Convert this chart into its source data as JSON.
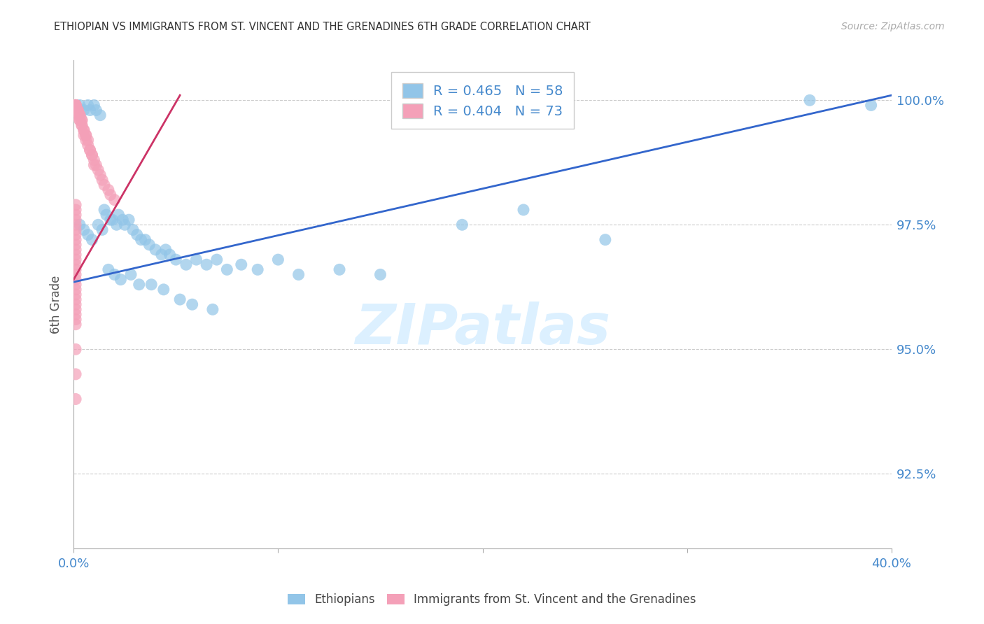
{
  "title": "ETHIOPIAN VS IMMIGRANTS FROM ST. VINCENT AND THE GRENADINES 6TH GRADE CORRELATION CHART",
  "source": "Source: ZipAtlas.com",
  "ylabel": "6th Grade",
  "ytick_labels": [
    "100.0%",
    "97.5%",
    "95.0%",
    "92.5%"
  ],
  "ytick_values": [
    1.0,
    0.975,
    0.95,
    0.925
  ],
  "xlim": [
    0.0,
    0.4
  ],
  "ylim": [
    0.91,
    1.008
  ],
  "legend_blue_r": "R = 0.465",
  "legend_blue_n": "N = 58",
  "legend_pink_r": "R = 0.404",
  "legend_pink_n": "N = 73",
  "blue_color": "#92C5E8",
  "pink_color": "#F4A0B8",
  "blue_line_color": "#3366CC",
  "pink_line_color": "#CC3366",
  "title_color": "#333333",
  "axis_label_color": "#4488CC",
  "watermark_color": "#DCF0FF",
  "blue_line_x": [
    0.0,
    0.4
  ],
  "blue_line_y": [
    0.9635,
    1.001
  ],
  "pink_line_x": [
    0.0,
    0.052
  ],
  "pink_line_y": [
    0.964,
    1.001
  ],
  "blue_scatter_x": [
    0.003,
    0.005,
    0.007,
    0.008,
    0.01,
    0.011,
    0.013,
    0.015,
    0.016,
    0.018,
    0.019,
    0.021,
    0.022,
    0.024,
    0.025,
    0.027,
    0.029,
    0.031,
    0.033,
    0.035,
    0.037,
    0.04,
    0.043,
    0.045,
    0.047,
    0.05,
    0.055,
    0.06,
    0.065,
    0.07,
    0.075,
    0.082,
    0.09,
    0.1,
    0.11,
    0.13,
    0.15,
    0.19,
    0.22,
    0.26,
    0.003,
    0.005,
    0.007,
    0.009,
    0.012,
    0.014,
    0.017,
    0.02,
    0.023,
    0.028,
    0.032,
    0.038,
    0.044,
    0.052,
    0.058,
    0.068,
    0.36,
    0.39
  ],
  "blue_scatter_y": [
    0.999,
    0.998,
    0.999,
    0.998,
    0.999,
    0.998,
    0.997,
    0.978,
    0.977,
    0.976,
    0.976,
    0.975,
    0.977,
    0.976,
    0.975,
    0.976,
    0.974,
    0.973,
    0.972,
    0.972,
    0.971,
    0.97,
    0.969,
    0.97,
    0.969,
    0.968,
    0.967,
    0.968,
    0.967,
    0.968,
    0.966,
    0.967,
    0.966,
    0.968,
    0.965,
    0.966,
    0.965,
    0.975,
    0.978,
    0.972,
    0.975,
    0.974,
    0.973,
    0.972,
    0.975,
    0.974,
    0.966,
    0.965,
    0.964,
    0.965,
    0.963,
    0.963,
    0.962,
    0.96,
    0.959,
    0.958,
    1.0,
    0.999
  ],
  "pink_scatter_x": [
    0.001,
    0.001,
    0.001,
    0.001,
    0.001,
    0.001,
    0.001,
    0.001,
    0.001,
    0.002,
    0.002,
    0.002,
    0.002,
    0.002,
    0.003,
    0.003,
    0.003,
    0.003,
    0.003,
    0.004,
    0.004,
    0.004,
    0.004,
    0.005,
    0.005,
    0.005,
    0.006,
    0.006,
    0.006,
    0.007,
    0.007,
    0.008,
    0.008,
    0.009,
    0.009,
    0.01,
    0.01,
    0.011,
    0.012,
    0.013,
    0.014,
    0.015,
    0.017,
    0.018,
    0.02,
    0.001,
    0.001,
    0.001,
    0.001,
    0.001,
    0.001,
    0.001,
    0.001,
    0.001,
    0.001,
    0.001,
    0.001,
    0.001,
    0.001,
    0.001,
    0.001,
    0.001,
    0.001,
    0.001,
    0.001,
    0.001,
    0.001,
    0.001,
    0.001,
    0.001,
    0.001,
    0.001,
    0.001
  ],
  "pink_scatter_y": [
    0.999,
    0.999,
    0.999,
    0.999,
    0.999,
    0.999,
    0.999,
    0.999,
    0.999,
    0.998,
    0.998,
    0.998,
    0.998,
    0.997,
    0.997,
    0.997,
    0.997,
    0.996,
    0.996,
    0.996,
    0.996,
    0.995,
    0.995,
    0.994,
    0.994,
    0.993,
    0.993,
    0.993,
    0.992,
    0.992,
    0.991,
    0.99,
    0.99,
    0.989,
    0.989,
    0.988,
    0.987,
    0.987,
    0.986,
    0.985,
    0.984,
    0.983,
    0.982,
    0.981,
    0.98,
    0.979,
    0.978,
    0.977,
    0.976,
    0.975,
    0.974,
    0.973,
    0.972,
    0.971,
    0.97,
    0.969,
    0.968,
    0.967,
    0.966,
    0.965,
    0.964,
    0.963,
    0.962,
    0.961,
    0.96,
    0.959,
    0.958,
    0.957,
    0.956,
    0.955,
    0.95,
    0.945,
    0.94
  ]
}
